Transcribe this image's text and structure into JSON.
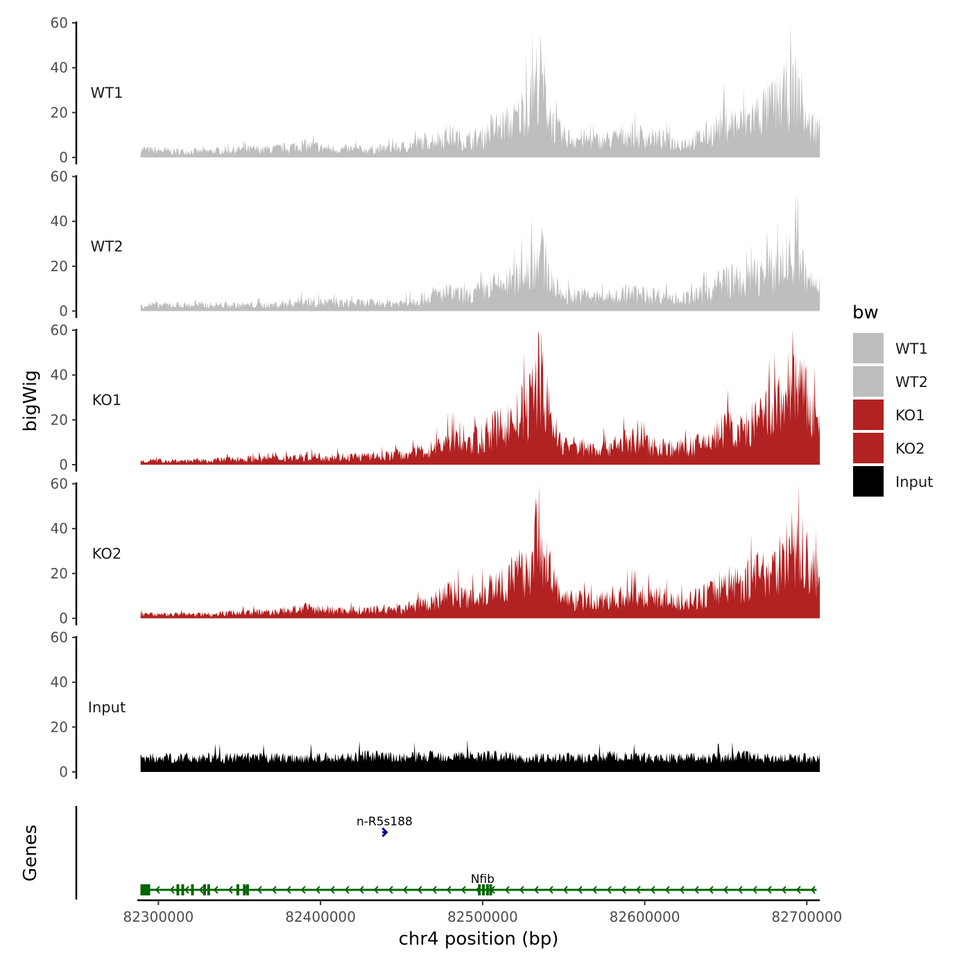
{
  "chart_data": {
    "type": "area",
    "chromosome": "chr4",
    "xlabel": "chr4 position (bp)",
    "ylabel": "bigWig",
    "genes_label": "Genes",
    "xlim": [
      82287000,
      82708000
    ],
    "x_ticks": [
      82300000,
      82400000,
      82500000,
      82600000,
      82700000
    ],
    "x_tick_labels": [
      "82300000",
      "82400000",
      "82500000",
      "82600000",
      "82700000"
    ],
    "ylim": [
      0,
      60
    ],
    "y_ticks": [
      0,
      20,
      40,
      60
    ],
    "y_tick_labels": [
      "0",
      "20",
      "40",
      "60"
    ],
    "legend": {
      "title": "bw",
      "placement": "right",
      "items": [
        {
          "label": "WT1",
          "color": "#bebebe"
        },
        {
          "label": "WT2",
          "color": "#bebebe"
        },
        {
          "label": "KO1",
          "color": "#b22222"
        },
        {
          "label": "KO2",
          "color": "#b22222"
        },
        {
          "label": "Input",
          "color": "#000000"
        }
      ]
    },
    "x": [
      82289000,
      82310000,
      82330000,
      82350000,
      82370000,
      82390000,
      82410000,
      82430000,
      82450000,
      82470000,
      82480000,
      82490000,
      82500000,
      82505000,
      82510000,
      82520000,
      82530000,
      82535000,
      82540000,
      82545000,
      82550000,
      82560000,
      82570000,
      82580000,
      82590000,
      82600000,
      82610000,
      82620000,
      82630000,
      82640000,
      82650000,
      82660000,
      82670000,
      82680000,
      82690000,
      82695000,
      82700000,
      82708000
    ],
    "series": [
      {
        "name": "WT1",
        "color": "#bebebe",
        "values": [
          4,
          3,
          3,
          4,
          4,
          6,
          4,
          4,
          5,
          9,
          11,
          8,
          10,
          14,
          15,
          18,
          28,
          42,
          25,
          14,
          10,
          9,
          8,
          9,
          12,
          10,
          9,
          7,
          8,
          12,
          18,
          16,
          22,
          26,
          32,
          34,
          16,
          14
        ]
      },
      {
        "name": "WT2",
        "color": "#bebebe",
        "values": [
          3,
          3,
          3,
          3,
          3,
          5,
          4,
          4,
          4,
          8,
          9,
          7,
          10,
          12,
          13,
          15,
          22,
          30,
          20,
          11,
          8,
          8,
          7,
          7,
          9,
          8,
          8,
          6,
          7,
          10,
          16,
          14,
          18,
          20,
          27,
          28,
          14,
          12
        ]
      },
      {
        "name": "KO1",
        "color": "#b22222",
        "values": [
          2,
          2,
          2,
          3,
          3,
          4,
          4,
          4,
          5,
          8,
          13,
          9,
          14,
          16,
          18,
          22,
          30,
          48,
          28,
          16,
          10,
          9,
          8,
          10,
          12,
          10,
          9,
          8,
          9,
          12,
          18,
          16,
          22,
          26,
          38,
          40,
          30,
          18
        ]
      },
      {
        "name": "KO2",
        "color": "#b22222",
        "values": [
          2,
          2,
          2,
          3,
          3,
          5,
          4,
          4,
          5,
          8,
          14,
          10,
          12,
          16,
          18,
          20,
          28,
          45,
          26,
          15,
          10,
          9,
          8,
          10,
          12,
          11,
          10,
          8,
          9,
          12,
          18,
          17,
          22,
          26,
          34,
          36,
          28,
          18
        ]
      },
      {
        "name": "Input",
        "color": "#000000",
        "values": [
          7,
          7,
          7,
          7,
          7,
          7,
          7,
          8,
          7,
          8,
          8,
          8,
          8,
          8,
          8,
          7,
          7,
          7,
          7,
          7,
          7,
          7,
          7,
          8,
          7,
          7,
          7,
          7,
          7,
          7,
          7,
          8,
          7,
          7,
          7,
          7,
          7,
          7
        ]
      }
    ],
    "genes": [
      {
        "name": "n-R5s188",
        "start": 82438000,
        "end": 82441000,
        "strand": "+",
        "color": "#00008b"
      },
      {
        "name": "Nfib",
        "start": 82290000,
        "end": 82706000,
        "strand": "-",
        "color": "#006400",
        "exons": [
          82291500,
          82312000,
          82315000,
          82321000,
          82328500,
          82331000,
          82349000,
          82353000,
          82355000,
          82498000,
          82500500,
          82503000,
          82505000
        ]
      }
    ]
  }
}
